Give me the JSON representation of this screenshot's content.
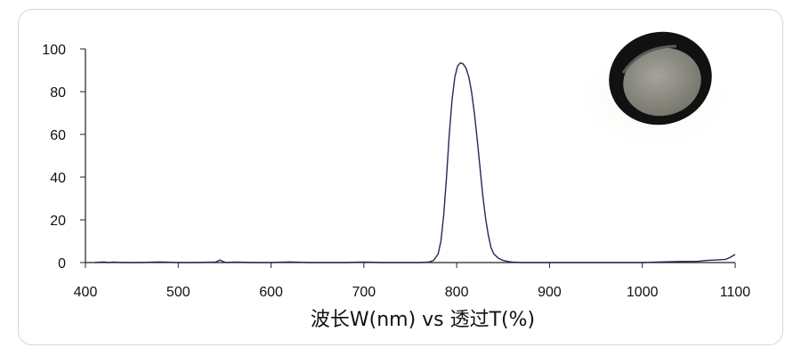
{
  "chart_data": {
    "type": "line",
    "title": "",
    "xlabel": "波长W(nm) vs 透过T(%)",
    "ylabel": "",
    "xlim": [
      400,
      1100
    ],
    "ylim": [
      0,
      100
    ],
    "x_ticks": [
      400,
      500,
      600,
      700,
      800,
      900,
      1000,
      1100
    ],
    "y_ticks": [
      0,
      20,
      40,
      60,
      80,
      100
    ],
    "grid": false,
    "legend": "none",
    "line_color": "#1f2a5a",
    "series": [
      {
        "x": [
          410,
          420,
          425,
          430,
          440,
          460,
          480,
          500,
          520,
          540,
          545,
          548,
          552,
          560,
          580,
          600,
          620,
          640,
          660,
          680,
          700,
          720,
          740,
          760,
          770,
          775,
          780,
          783,
          786,
          789,
          792,
          795,
          798,
          801,
          804,
          807,
          810,
          813,
          816,
          819,
          822,
          825,
          828,
          831,
          834,
          837,
          840,
          845,
          850,
          855,
          860,
          870,
          900,
          950,
          1000,
          1020,
          1040,
          1060,
          1070,
          1080,
          1090,
          1095,
          1100
        ],
        "y": [
          0,
          0.3,
          0,
          0.2,
          0,
          0,
          0.3,
          0,
          0,
          0.2,
          1.2,
          0.5,
          0,
          0.2,
          0,
          0,
          0.3,
          0,
          0,
          0,
          0.2,
          0,
          0,
          0,
          0.2,
          1,
          4,
          10,
          22,
          40,
          60,
          76,
          87,
          92,
          93.5,
          93,
          91,
          87,
          80,
          70,
          58,
          45,
          32,
          21,
          13,
          7,
          4,
          2,
          1,
          0.5,
          0.2,
          0,
          0,
          0,
          0,
          0.3,
          0.5,
          0.6,
          1,
          1.2,
          1.5,
          2.5,
          3.8
        ]
      }
    ]
  },
  "photo": {
    "subject": "round optical filter in black mount",
    "ring_color": "#111111",
    "glass_color": "#8b8a82"
  }
}
